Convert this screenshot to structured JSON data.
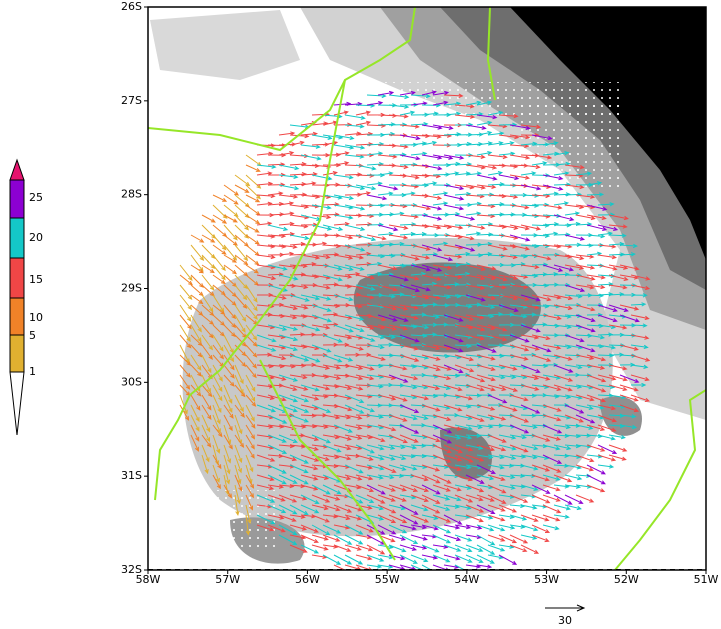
{
  "map": {
    "lat_labels": [
      "26S",
      "27S",
      "28S",
      "29S",
      "30S",
      "31S",
      "32S"
    ],
    "lon_labels": [
      "58W",
      "57W",
      "56W",
      "55W",
      "54W",
      "53W",
      "52W",
      "51W"
    ],
    "colorbar": {
      "ticks": [
        1,
        5,
        10,
        15,
        20,
        25
      ],
      "colors": [
        "#ffffff",
        "#e0b030",
        "#f08228",
        "#f04646",
        "#14c8c8",
        "#8c00d2",
        "#e6146e"
      ]
    },
    "reference_vector": {
      "label": "30"
    }
  }
}
